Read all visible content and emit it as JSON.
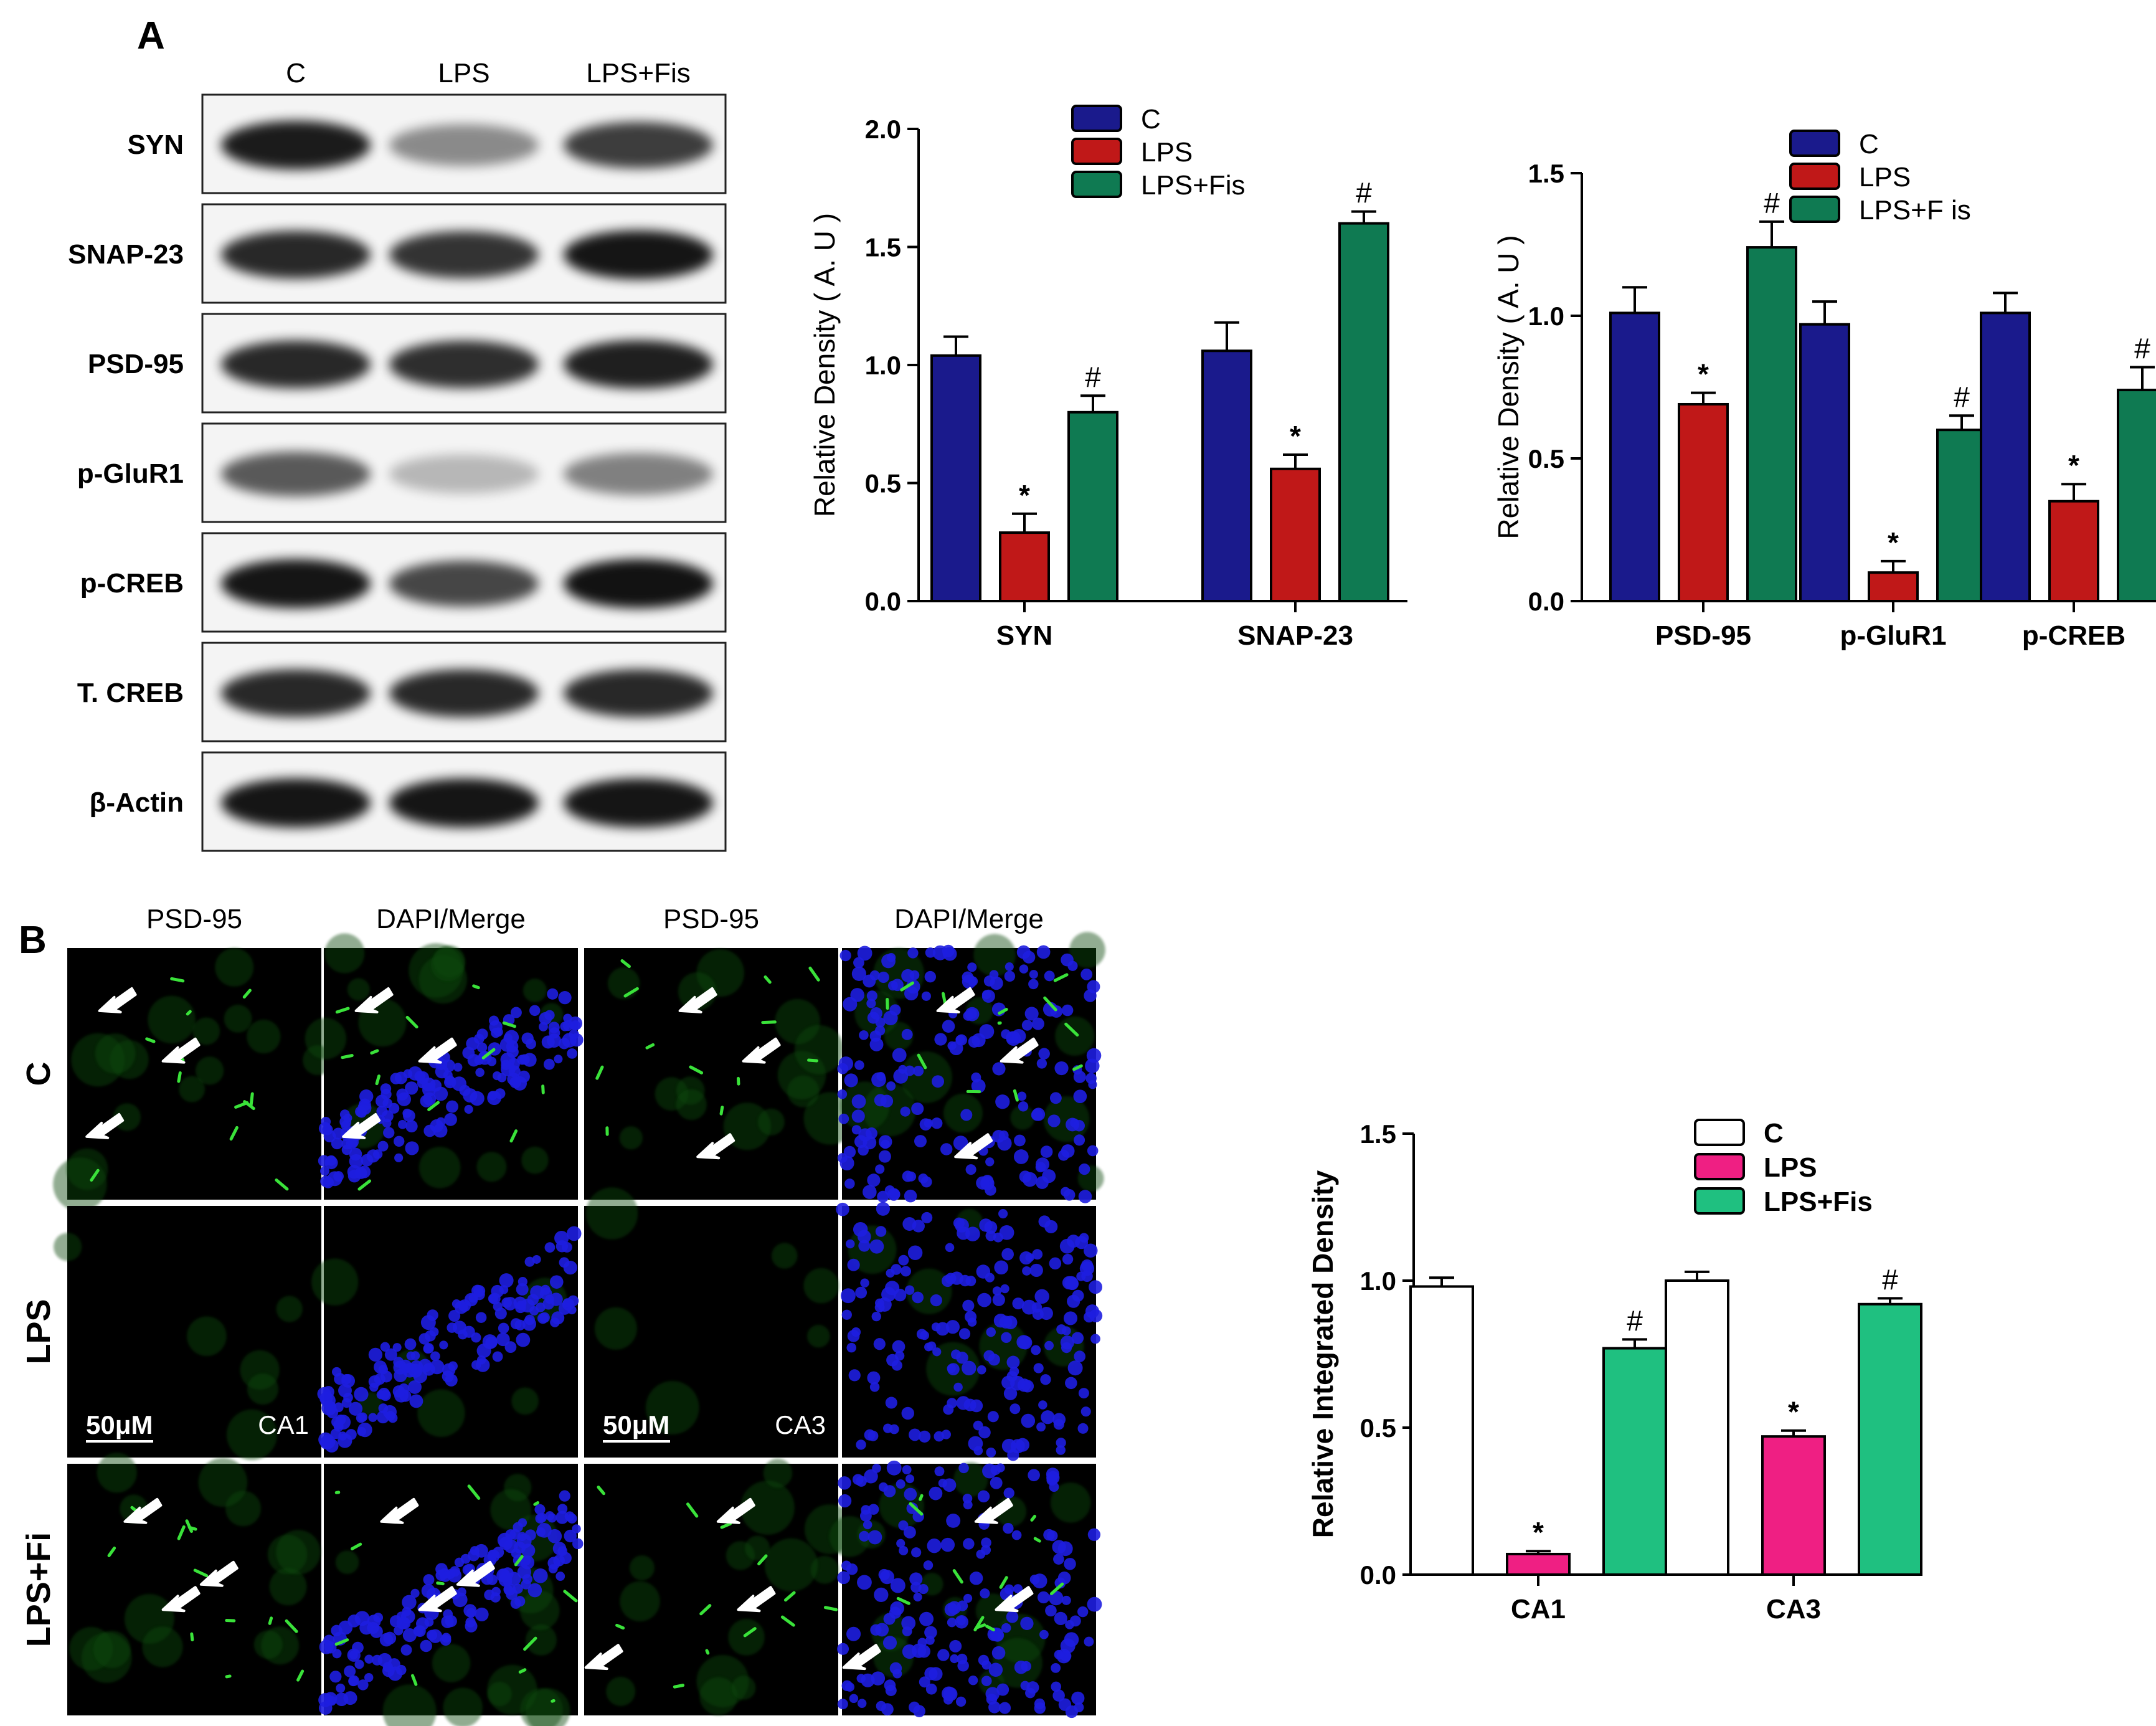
{
  "panels": {
    "a": "A",
    "b": "B"
  },
  "blot": {
    "lanes": [
      "C",
      "LPS",
      "LPS+Fis"
    ],
    "rows": [
      {
        "label": "SYN",
        "intensity": [
          0.92,
          0.35,
          0.75
        ]
      },
      {
        "label": "SNAP-23",
        "intensity": [
          0.85,
          0.8,
          0.95
        ]
      },
      {
        "label": "PSD-95",
        "intensity": [
          0.85,
          0.82,
          0.9
        ]
      },
      {
        "label": "p-GluR1",
        "intensity": [
          0.6,
          0.12,
          0.4
        ]
      },
      {
        "label": "p-CREB",
        "intensity": [
          0.95,
          0.7,
          0.97
        ]
      },
      {
        "label": "T. CREB",
        "intensity": [
          0.85,
          0.85,
          0.85
        ]
      },
      {
        "label": "β-Actin",
        "intensity": [
          0.95,
          0.95,
          0.95
        ]
      }
    ]
  },
  "micro": {
    "columns": [
      "PSD-95",
      "DAPI/Merge",
      "PSD-95",
      "DAPI/Merge"
    ],
    "rows": [
      "C",
      "LPS",
      "LPS+Fi"
    ],
    "scale_bar": "50μM",
    "regions": [
      "CA1",
      "CA3"
    ]
  },
  "colors": {
    "c": "#1a1a8c",
    "lps": "#c01818",
    "fis": "#0f7a52",
    "b_c": "#ffffff",
    "b_lps": "#ef1f83",
    "b_fis": "#1fc080",
    "nuclei": "#1e1ee0",
    "psd": "#3ae23a"
  },
  "chart_data": [
    {
      "type": "bar",
      "categories": [
        "SYN",
        "SNAP-23"
      ],
      "series": [
        {
          "name": "C",
          "values": [
            1.04,
            1.06
          ],
          "errors": [
            0.08,
            0.12
          ],
          "marks": [
            "",
            ""
          ]
        },
        {
          "name": "LPS",
          "values": [
            0.29,
            0.56
          ],
          "errors": [
            0.08,
            0.06
          ],
          "marks": [
            "*",
            "*"
          ]
        },
        {
          "name": "LPS+Fis",
          "values": [
            0.8,
            1.6
          ],
          "errors": [
            0.07,
            0.05
          ],
          "marks": [
            "#",
            "#"
          ]
        }
      ],
      "ylabel": "Relative Density ( A. U )",
      "ylim": [
        0,
        2.0
      ],
      "yticks": [
        "0.0",
        "0.5",
        "1.0",
        "1.5",
        "2.0"
      ],
      "legend": "top"
    },
    {
      "type": "bar",
      "categories": [
        "PSD-95",
        "p-GluR1",
        "p-CREB"
      ],
      "series": [
        {
          "name": "C",
          "values": [
            1.01,
            0.97,
            1.01
          ],
          "errors": [
            0.09,
            0.08,
            0.07
          ],
          "marks": [
            "",
            "",
            ""
          ]
        },
        {
          "name": "LPS",
          "values": [
            0.69,
            0.1,
            0.35
          ],
          "errors": [
            0.04,
            0.04,
            0.06
          ],
          "marks": [
            "*",
            "*",
            "*"
          ]
        },
        {
          "name": "LPS+F is",
          "values": [
            1.24,
            0.6,
            0.74
          ],
          "errors": [
            0.09,
            0.05,
            0.08
          ],
          "marks": [
            "#",
            "#",
            "#"
          ]
        }
      ],
      "ylabel": "Relative Density ( A. U )",
      "ylim": [
        0,
        1.5
      ],
      "yticks": [
        "0.0",
        "0.5",
        "1.0",
        "1.5"
      ],
      "legend": "top"
    },
    {
      "type": "bar",
      "categories": [
        "CA1",
        "CA3"
      ],
      "series": [
        {
          "name": "C",
          "values": [
            0.98,
            1.0
          ],
          "errors": [
            0.03,
            0.03
          ],
          "marks": [
            "",
            ""
          ]
        },
        {
          "name": "LPS",
          "values": [
            0.07,
            0.47
          ],
          "errors": [
            0.01,
            0.02
          ],
          "marks": [
            "*",
            "*"
          ]
        },
        {
          "name": "LPS+Fis",
          "values": [
            0.77,
            0.92
          ],
          "errors": [
            0.03,
            0.02
          ],
          "marks": [
            "#",
            "#"
          ]
        }
      ],
      "ylabel": "Relative Integrated Density",
      "ylim": [
        0,
        1.5
      ],
      "yticks": [
        "0.0",
        "0.5",
        "1.0",
        "1.5"
      ],
      "legend": "top"
    }
  ]
}
